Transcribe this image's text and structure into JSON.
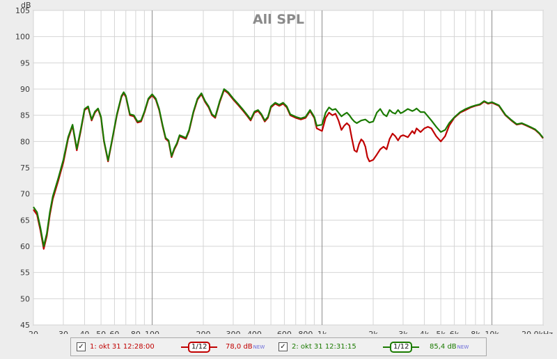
{
  "chart_data": {
    "type": "line",
    "title": "All SPL",
    "ylabel": "dB",
    "xlabel": "",
    "x_scale": "log",
    "xlim": [
      20,
      20000
    ],
    "ylim": [
      45,
      105
    ],
    "y_ticks": [
      45,
      50,
      55,
      60,
      65,
      70,
      75,
      80,
      85,
      90,
      95,
      100,
      105
    ],
    "x_ticks": [
      {
        "value": 20,
        "label": "20"
      },
      {
        "value": 30,
        "label": "30"
      },
      {
        "value": 40,
        "label": "40"
      },
      {
        "value": 50,
        "label": "50"
      },
      {
        "value": 60,
        "label": "60"
      },
      {
        "value": 80,
        "label": "80"
      },
      {
        "value": 100,
        "label": "100"
      },
      {
        "value": 200,
        "label": "200"
      },
      {
        "value": 300,
        "label": "300"
      },
      {
        "value": 400,
        "label": "400"
      },
      {
        "value": 600,
        "label": "600"
      },
      {
        "value": 800,
        "label": "800"
      },
      {
        "value": 1000,
        "label": "1k"
      },
      {
        "value": 2000,
        "label": "2k"
      },
      {
        "value": 3000,
        "label": "3k"
      },
      {
        "value": 4000,
        "label": "4k"
      },
      {
        "value": 5000,
        "label": "5k"
      },
      {
        "value": 6000,
        "label": "6k"
      },
      {
        "value": 8000,
        "label": "8k"
      },
      {
        "value": 10000,
        "label": "10k"
      },
      {
        "value": 20000,
        "label": "20,0kHz"
      }
    ],
    "grid": true,
    "series": [
      {
        "id": "s1",
        "color": "#c00000",
        "points": [
          [
            20,
            67.0
          ],
          [
            21,
            66.0
          ],
          [
            22,
            63.0
          ],
          [
            23,
            59.5
          ],
          [
            24,
            62.0
          ],
          [
            25,
            66.0
          ],
          [
            26,
            69.0
          ],
          [
            28,
            72.5
          ],
          [
            30,
            76.0
          ],
          [
            32,
            80.5
          ],
          [
            34,
            83.0
          ],
          [
            36,
            78.3
          ],
          [
            38,
            82.0
          ],
          [
            40,
            86.0
          ],
          [
            42,
            86.5
          ],
          [
            44,
            84.0
          ],
          [
            46,
            85.5
          ],
          [
            48,
            86.2
          ],
          [
            50,
            84.5
          ],
          [
            52,
            80.0
          ],
          [
            55,
            76.2
          ],
          [
            58,
            80.0
          ],
          [
            62,
            85.0
          ],
          [
            66,
            88.5
          ],
          [
            68,
            89.2
          ],
          [
            70,
            88.5
          ],
          [
            74,
            85.0
          ],
          [
            78,
            84.8
          ],
          [
            82,
            83.6
          ],
          [
            86,
            83.8
          ],
          [
            90,
            85.5
          ],
          [
            95,
            88.0
          ],
          [
            100,
            88.8
          ],
          [
            105,
            88.0
          ],
          [
            110,
            86.0
          ],
          [
            115,
            83.0
          ],
          [
            120,
            80.5
          ],
          [
            125,
            80.0
          ],
          [
            130,
            77.0
          ],
          [
            135,
            78.5
          ],
          [
            140,
            79.5
          ],
          [
            145,
            81.0
          ],
          [
            150,
            80.8
          ],
          [
            158,
            80.5
          ],
          [
            165,
            82.0
          ],
          [
            175,
            85.5
          ],
          [
            185,
            88.0
          ],
          [
            195,
            89.0
          ],
          [
            205,
            87.5
          ],
          [
            215,
            86.5
          ],
          [
            225,
            85.0
          ],
          [
            235,
            84.5
          ],
          [
            250,
            87.5
          ],
          [
            265,
            89.8
          ],
          [
            280,
            89.2
          ],
          [
            300,
            88.0
          ],
          [
            320,
            87.0
          ],
          [
            340,
            86.0
          ],
          [
            360,
            85.0
          ],
          [
            380,
            84.0
          ],
          [
            400,
            85.5
          ],
          [
            420,
            85.8
          ],
          [
            440,
            85.0
          ],
          [
            460,
            83.8
          ],
          [
            480,
            84.5
          ],
          [
            500,
            86.5
          ],
          [
            530,
            87.2
          ],
          [
            560,
            86.8
          ],
          [
            590,
            87.2
          ],
          [
            620,
            86.5
          ],
          [
            650,
            85.0
          ],
          [
            700,
            84.5
          ],
          [
            750,
            84.2
          ],
          [
            800,
            84.5
          ],
          [
            850,
            85.8
          ],
          [
            900,
            84.5
          ],
          [
            930,
            82.5
          ],
          [
            1000,
            82.0
          ],
          [
            1050,
            84.5
          ],
          [
            1100,
            85.5
          ],
          [
            1150,
            85.0
          ],
          [
            1200,
            85.3
          ],
          [
            1250,
            84.0
          ],
          [
            1300,
            82.2
          ],
          [
            1350,
            83.0
          ],
          [
            1400,
            83.5
          ],
          [
            1450,
            83.0
          ],
          [
            1500,
            80.5
          ],
          [
            1550,
            78.3
          ],
          [
            1600,
            78.0
          ],
          [
            1650,
            79.5
          ],
          [
            1700,
            80.4
          ],
          [
            1750,
            80.0
          ],
          [
            1800,
            79.0
          ],
          [
            1850,
            77.0
          ],
          [
            1900,
            76.2
          ],
          [
            2000,
            76.5
          ],
          [
            2100,
            77.5
          ],
          [
            2200,
            78.5
          ],
          [
            2300,
            79.0
          ],
          [
            2400,
            78.5
          ],
          [
            2500,
            80.5
          ],
          [
            2600,
            81.5
          ],
          [
            2700,
            81.0
          ],
          [
            2800,
            80.2
          ],
          [
            2900,
            81.0
          ],
          [
            3000,
            81.2
          ],
          [
            3200,
            80.8
          ],
          [
            3400,
            82.0
          ],
          [
            3500,
            81.5
          ],
          [
            3600,
            82.5
          ],
          [
            3800,
            81.8
          ],
          [
            4000,
            82.5
          ],
          [
            4200,
            82.8
          ],
          [
            4400,
            82.5
          ],
          [
            4700,
            81.0
          ],
          [
            5000,
            80.0
          ],
          [
            5300,
            81.0
          ],
          [
            5600,
            83.0
          ],
          [
            6000,
            84.5
          ],
          [
            6500,
            85.5
          ],
          [
            7000,
            86.0
          ],
          [
            7500,
            86.5
          ],
          [
            8000,
            86.8
          ],
          [
            8500,
            87.0
          ],
          [
            9000,
            87.6
          ],
          [
            9500,
            87.2
          ],
          [
            10000,
            87.4
          ],
          [
            11000,
            86.8
          ],
          [
            12000,
            85.0
          ],
          [
            13000,
            84.0
          ],
          [
            14000,
            83.2
          ],
          [
            15000,
            83.4
          ],
          [
            16000,
            83.0
          ],
          [
            17000,
            82.6
          ],
          [
            18000,
            82.2
          ],
          [
            19000,
            81.5
          ],
          [
            20000,
            80.6
          ]
        ]
      },
      {
        "id": "s2",
        "color": "#1a7a00",
        "points": [
          [
            20,
            67.5
          ],
          [
            21,
            66.5
          ],
          [
            22,
            63.5
          ],
          [
            23,
            60.0
          ],
          [
            24,
            62.5
          ],
          [
            25,
            66.5
          ],
          [
            26,
            69.5
          ],
          [
            28,
            73.0
          ],
          [
            30,
            76.5
          ],
          [
            32,
            80.8
          ],
          [
            34,
            83.2
          ],
          [
            36,
            78.6
          ],
          [
            38,
            82.3
          ],
          [
            40,
            86.2
          ],
          [
            42,
            86.7
          ],
          [
            44,
            84.2
          ],
          [
            46,
            85.7
          ],
          [
            48,
            86.3
          ],
          [
            50,
            84.7
          ],
          [
            52,
            80.2
          ],
          [
            55,
            76.4
          ],
          [
            58,
            80.2
          ],
          [
            62,
            85.2
          ],
          [
            66,
            88.7
          ],
          [
            68,
            89.4
          ],
          [
            70,
            88.7
          ],
          [
            74,
            85.2
          ],
          [
            78,
            85.0
          ],
          [
            82,
            83.8
          ],
          [
            86,
            84.0
          ],
          [
            90,
            85.7
          ],
          [
            95,
            88.2
          ],
          [
            100,
            89.0
          ],
          [
            105,
            88.2
          ],
          [
            110,
            86.2
          ],
          [
            115,
            83.2
          ],
          [
            120,
            80.7
          ],
          [
            125,
            80.2
          ],
          [
            130,
            77.2
          ],
          [
            135,
            78.7
          ],
          [
            140,
            79.7
          ],
          [
            145,
            81.2
          ],
          [
            150,
            81.0
          ],
          [
            158,
            80.7
          ],
          [
            165,
            82.2
          ],
          [
            175,
            85.7
          ],
          [
            185,
            88.2
          ],
          [
            195,
            89.2
          ],
          [
            205,
            87.7
          ],
          [
            215,
            86.7
          ],
          [
            225,
            85.2
          ],
          [
            235,
            84.7
          ],
          [
            250,
            87.7
          ],
          [
            265,
            90.0
          ],
          [
            280,
            89.4
          ],
          [
            300,
            88.2
          ],
          [
            320,
            87.2
          ],
          [
            340,
            86.2
          ],
          [
            360,
            85.2
          ],
          [
            380,
            84.2
          ],
          [
            400,
            85.7
          ],
          [
            420,
            86.0
          ],
          [
            440,
            85.2
          ],
          [
            460,
            84.0
          ],
          [
            480,
            84.7
          ],
          [
            500,
            86.7
          ],
          [
            530,
            87.4
          ],
          [
            560,
            87.0
          ],
          [
            590,
            87.4
          ],
          [
            620,
            86.7
          ],
          [
            650,
            85.2
          ],
          [
            700,
            84.7
          ],
          [
            750,
            84.4
          ],
          [
            800,
            84.7
          ],
          [
            850,
            86.0
          ],
          [
            900,
            84.7
          ],
          [
            930,
            83.0
          ],
          [
            1000,
            83.2
          ],
          [
            1050,
            85.5
          ],
          [
            1100,
            86.5
          ],
          [
            1150,
            86.0
          ],
          [
            1200,
            86.2
          ],
          [
            1250,
            85.5
          ],
          [
            1300,
            84.8
          ],
          [
            1350,
            85.2
          ],
          [
            1400,
            85.5
          ],
          [
            1450,
            85.0
          ],
          [
            1500,
            84.3
          ],
          [
            1550,
            83.8
          ],
          [
            1600,
            83.5
          ],
          [
            1700,
            84.0
          ],
          [
            1800,
            84.2
          ],
          [
            1900,
            83.6
          ],
          [
            2000,
            83.8
          ],
          [
            2100,
            85.5
          ],
          [
            2200,
            86.2
          ],
          [
            2300,
            85.2
          ],
          [
            2400,
            84.8
          ],
          [
            2500,
            86.0
          ],
          [
            2600,
            85.5
          ],
          [
            2700,
            85.3
          ],
          [
            2800,
            86.0
          ],
          [
            2900,
            85.4
          ],
          [
            3000,
            85.6
          ],
          [
            3200,
            86.2
          ],
          [
            3400,
            85.8
          ],
          [
            3500,
            86.0
          ],
          [
            3600,
            86.3
          ],
          [
            3800,
            85.6
          ],
          [
            4000,
            85.6
          ],
          [
            4200,
            84.8
          ],
          [
            4400,
            84.0
          ],
          [
            4700,
            82.8
          ],
          [
            5000,
            81.8
          ],
          [
            5300,
            82.2
          ],
          [
            5600,
            83.5
          ],
          [
            6000,
            84.6
          ],
          [
            6500,
            85.6
          ],
          [
            7000,
            86.2
          ],
          [
            7500,
            86.6
          ],
          [
            8000,
            86.9
          ],
          [
            8500,
            87.1
          ],
          [
            9000,
            87.7
          ],
          [
            9500,
            87.3
          ],
          [
            10000,
            87.5
          ],
          [
            11000,
            86.9
          ],
          [
            12000,
            85.1
          ],
          [
            13000,
            84.1
          ],
          [
            14000,
            83.3
          ],
          [
            15000,
            83.5
          ],
          [
            16000,
            83.1
          ],
          [
            17000,
            82.7
          ],
          [
            18000,
            82.3
          ],
          [
            19000,
            81.6
          ],
          [
            20000,
            80.7
          ]
        ]
      }
    ]
  },
  "legend": {
    "items": [
      {
        "checked": "✓",
        "name": "1: okt 31 12:28:00",
        "smoothing": "1/12",
        "level": "78,0 dB",
        "new_tag": "NEW",
        "color": "#c00000"
      },
      {
        "checked": "✓",
        "name": "2: okt 31 12:31:15",
        "smoothing": "1/12",
        "level": "85,4 dB",
        "new_tag": "NEW",
        "color": "#1a7a00"
      }
    ]
  }
}
